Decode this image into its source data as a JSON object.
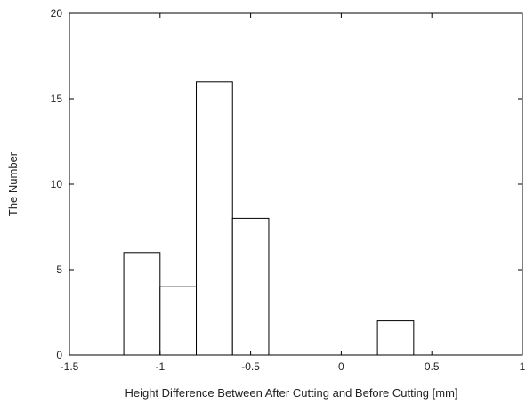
{
  "chart_data": {
    "type": "bar",
    "subtype": "histogram",
    "bins": [
      {
        "x0": -1.2,
        "x1": -1.0,
        "count": 6
      },
      {
        "x0": -1.0,
        "x1": -0.8,
        "count": 4
      },
      {
        "x0": -0.8,
        "x1": -0.6,
        "count": 16
      },
      {
        "x0": -0.6,
        "x1": -0.4,
        "count": 8
      },
      {
        "x0": 0.2,
        "x1": 0.4,
        "count": 2
      }
    ],
    "xlabel": "Height Difference Between After Cutting and Before Cutting [mm]",
    "ylabel": "The Number",
    "xlim": [
      -1.5,
      1
    ],
    "ylim": [
      0,
      20
    ],
    "xticks": [
      -1.5,
      -1,
      -0.5,
      0,
      0.5,
      1
    ],
    "xtick_labels": [
      "-1.5",
      "-1",
      "-0.5",
      "0",
      "0.5",
      "1"
    ],
    "yticks": [
      0,
      5,
      10,
      15,
      20
    ],
    "ytick_labels": [
      "0",
      "5",
      "10",
      "15",
      "20"
    ],
    "grid": false,
    "legend": "none",
    "colors": {
      "bar_fill": "#ffffff",
      "bar_stroke": "#000000",
      "axis": "#000000"
    }
  }
}
